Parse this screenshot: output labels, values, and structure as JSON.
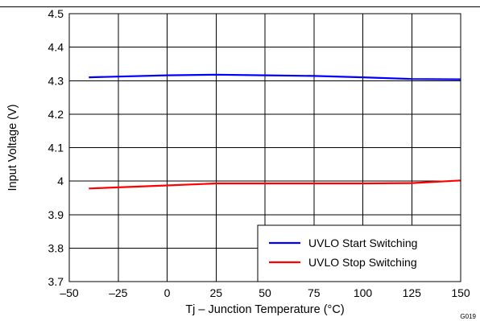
{
  "chart_data": {
    "type": "line",
    "xlabel": "Tj – Junction Temperature (°C)",
    "ylabel": "Input Voltage (V)",
    "xlim": [
      -50,
      150
    ],
    "ylim": [
      3.7,
      4.5
    ],
    "x_ticks": [
      -50,
      -25,
      0,
      25,
      50,
      75,
      100,
      125,
      150
    ],
    "x_tick_labels": [
      "–50",
      "–25",
      "0",
      "25",
      "50",
      "75",
      "100",
      "125",
      "150"
    ],
    "y_ticks": [
      3.7,
      3.8,
      3.9,
      4.0,
      4.1,
      4.2,
      4.3,
      4.4,
      4.5
    ],
    "y_tick_labels": [
      "3.7",
      "3.8",
      "3.9",
      "4",
      "4.1",
      "4.2",
      "4.3",
      "4.4",
      "4.5"
    ],
    "grid": true,
    "legend_position": "bottom-right",
    "series": [
      {
        "name": "UVLO Start Switching",
        "color": "#0000ff",
        "x": [
          -40,
          0,
          25,
          50,
          75,
          100,
          125,
          150
        ],
        "y": [
          4.31,
          4.316,
          4.318,
          4.316,
          4.314,
          4.31,
          4.305,
          4.304
        ]
      },
      {
        "name": "UVLO Stop Switching",
        "color": "#ff0000",
        "x": [
          -40,
          0,
          25,
          50,
          75,
          100,
          125,
          150
        ],
        "y": [
          3.978,
          3.987,
          3.993,
          3.993,
          3.993,
          3.993,
          3.994,
          4.002
        ]
      }
    ],
    "annotations": [
      "G019"
    ]
  }
}
